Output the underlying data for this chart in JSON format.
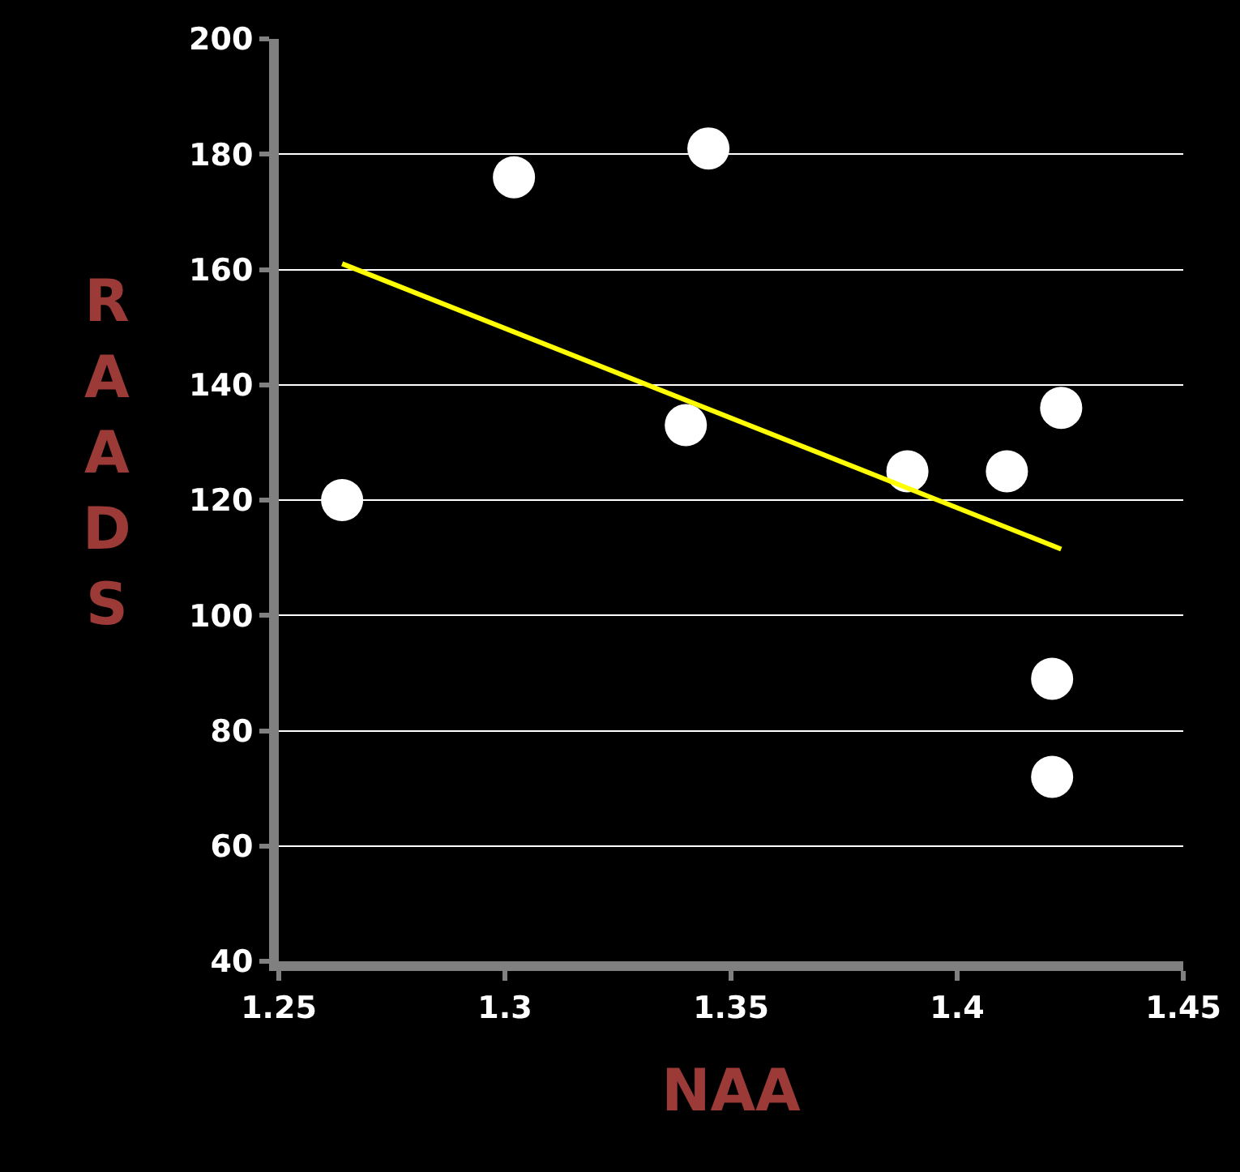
{
  "chart_data": {
    "type": "scatter",
    "xlabel": "NAA",
    "ylabel": "RAADS",
    "series": [
      {
        "color": "#ffffff",
        "marker": "circle",
        "x": [
          1.264,
          1.302,
          1.345,
          1.34,
          1.389,
          1.411,
          1.423,
          1.421,
          1.421
        ],
        "values": [
          120,
          176,
          181,
          133,
          125,
          125,
          136,
          89,
          72
        ]
      },
      {
        "type": "line",
        "color": "#ffff00",
        "marker": "none",
        "line_style": "solid",
        "x": [
          1.264,
          1.423
        ],
        "values": [
          161,
          111.5
        ]
      }
    ],
    "xlim": [
      1.25,
      1.45
    ],
    "xticks": [
      1.25,
      1.3,
      1.35,
      1.4,
      1.45
    ],
    "ylim": [
      40,
      200
    ],
    "yticks": [
      40,
      60,
      80,
      100,
      120,
      140,
      160,
      180,
      200
    ],
    "grid": "y"
  }
}
